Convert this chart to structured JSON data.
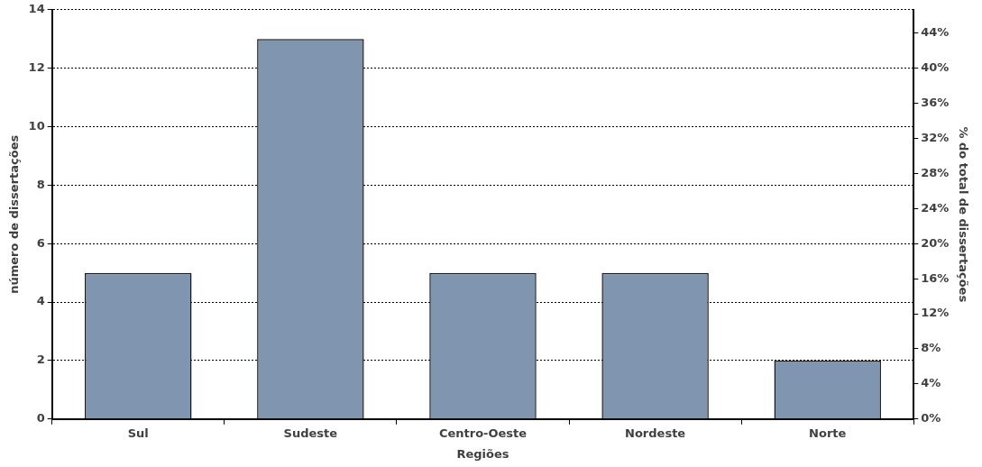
{
  "chart_data": {
    "type": "bar",
    "xlabel": "Regiões",
    "ylabel": "número de dissertações",
    "y2label": "% do total de dissertações",
    "categories": [
      "Sul",
      "Sudeste",
      "Centro-Oeste",
      "Nordeste",
      "Norte"
    ],
    "values": [
      5,
      13,
      5,
      5,
      2
    ],
    "color": "#8096b0",
    "ylim": [
      0,
      14
    ],
    "yticks": [
      0,
      2,
      4,
      6,
      8,
      10,
      12,
      14
    ],
    "y2lim": [
      0,
      46.67
    ],
    "y2ticks": [
      {
        "value": 0,
        "label": "0%"
      },
      {
        "value": 4,
        "label": "4%"
      },
      {
        "value": 8,
        "label": "8%"
      },
      {
        "value": 12,
        "label": "12%"
      },
      {
        "value": 16,
        "label": "16%"
      },
      {
        "value": 20,
        "label": "20%"
      },
      {
        "value": 24,
        "label": "24%"
      },
      {
        "value": 28,
        "label": "28%"
      },
      {
        "value": 32,
        "label": "32%"
      },
      {
        "value": 36,
        "label": "36%"
      },
      {
        "value": 40,
        "label": "40%"
      },
      {
        "value": 44,
        "label": "44%"
      }
    ],
    "grid": "y"
  }
}
